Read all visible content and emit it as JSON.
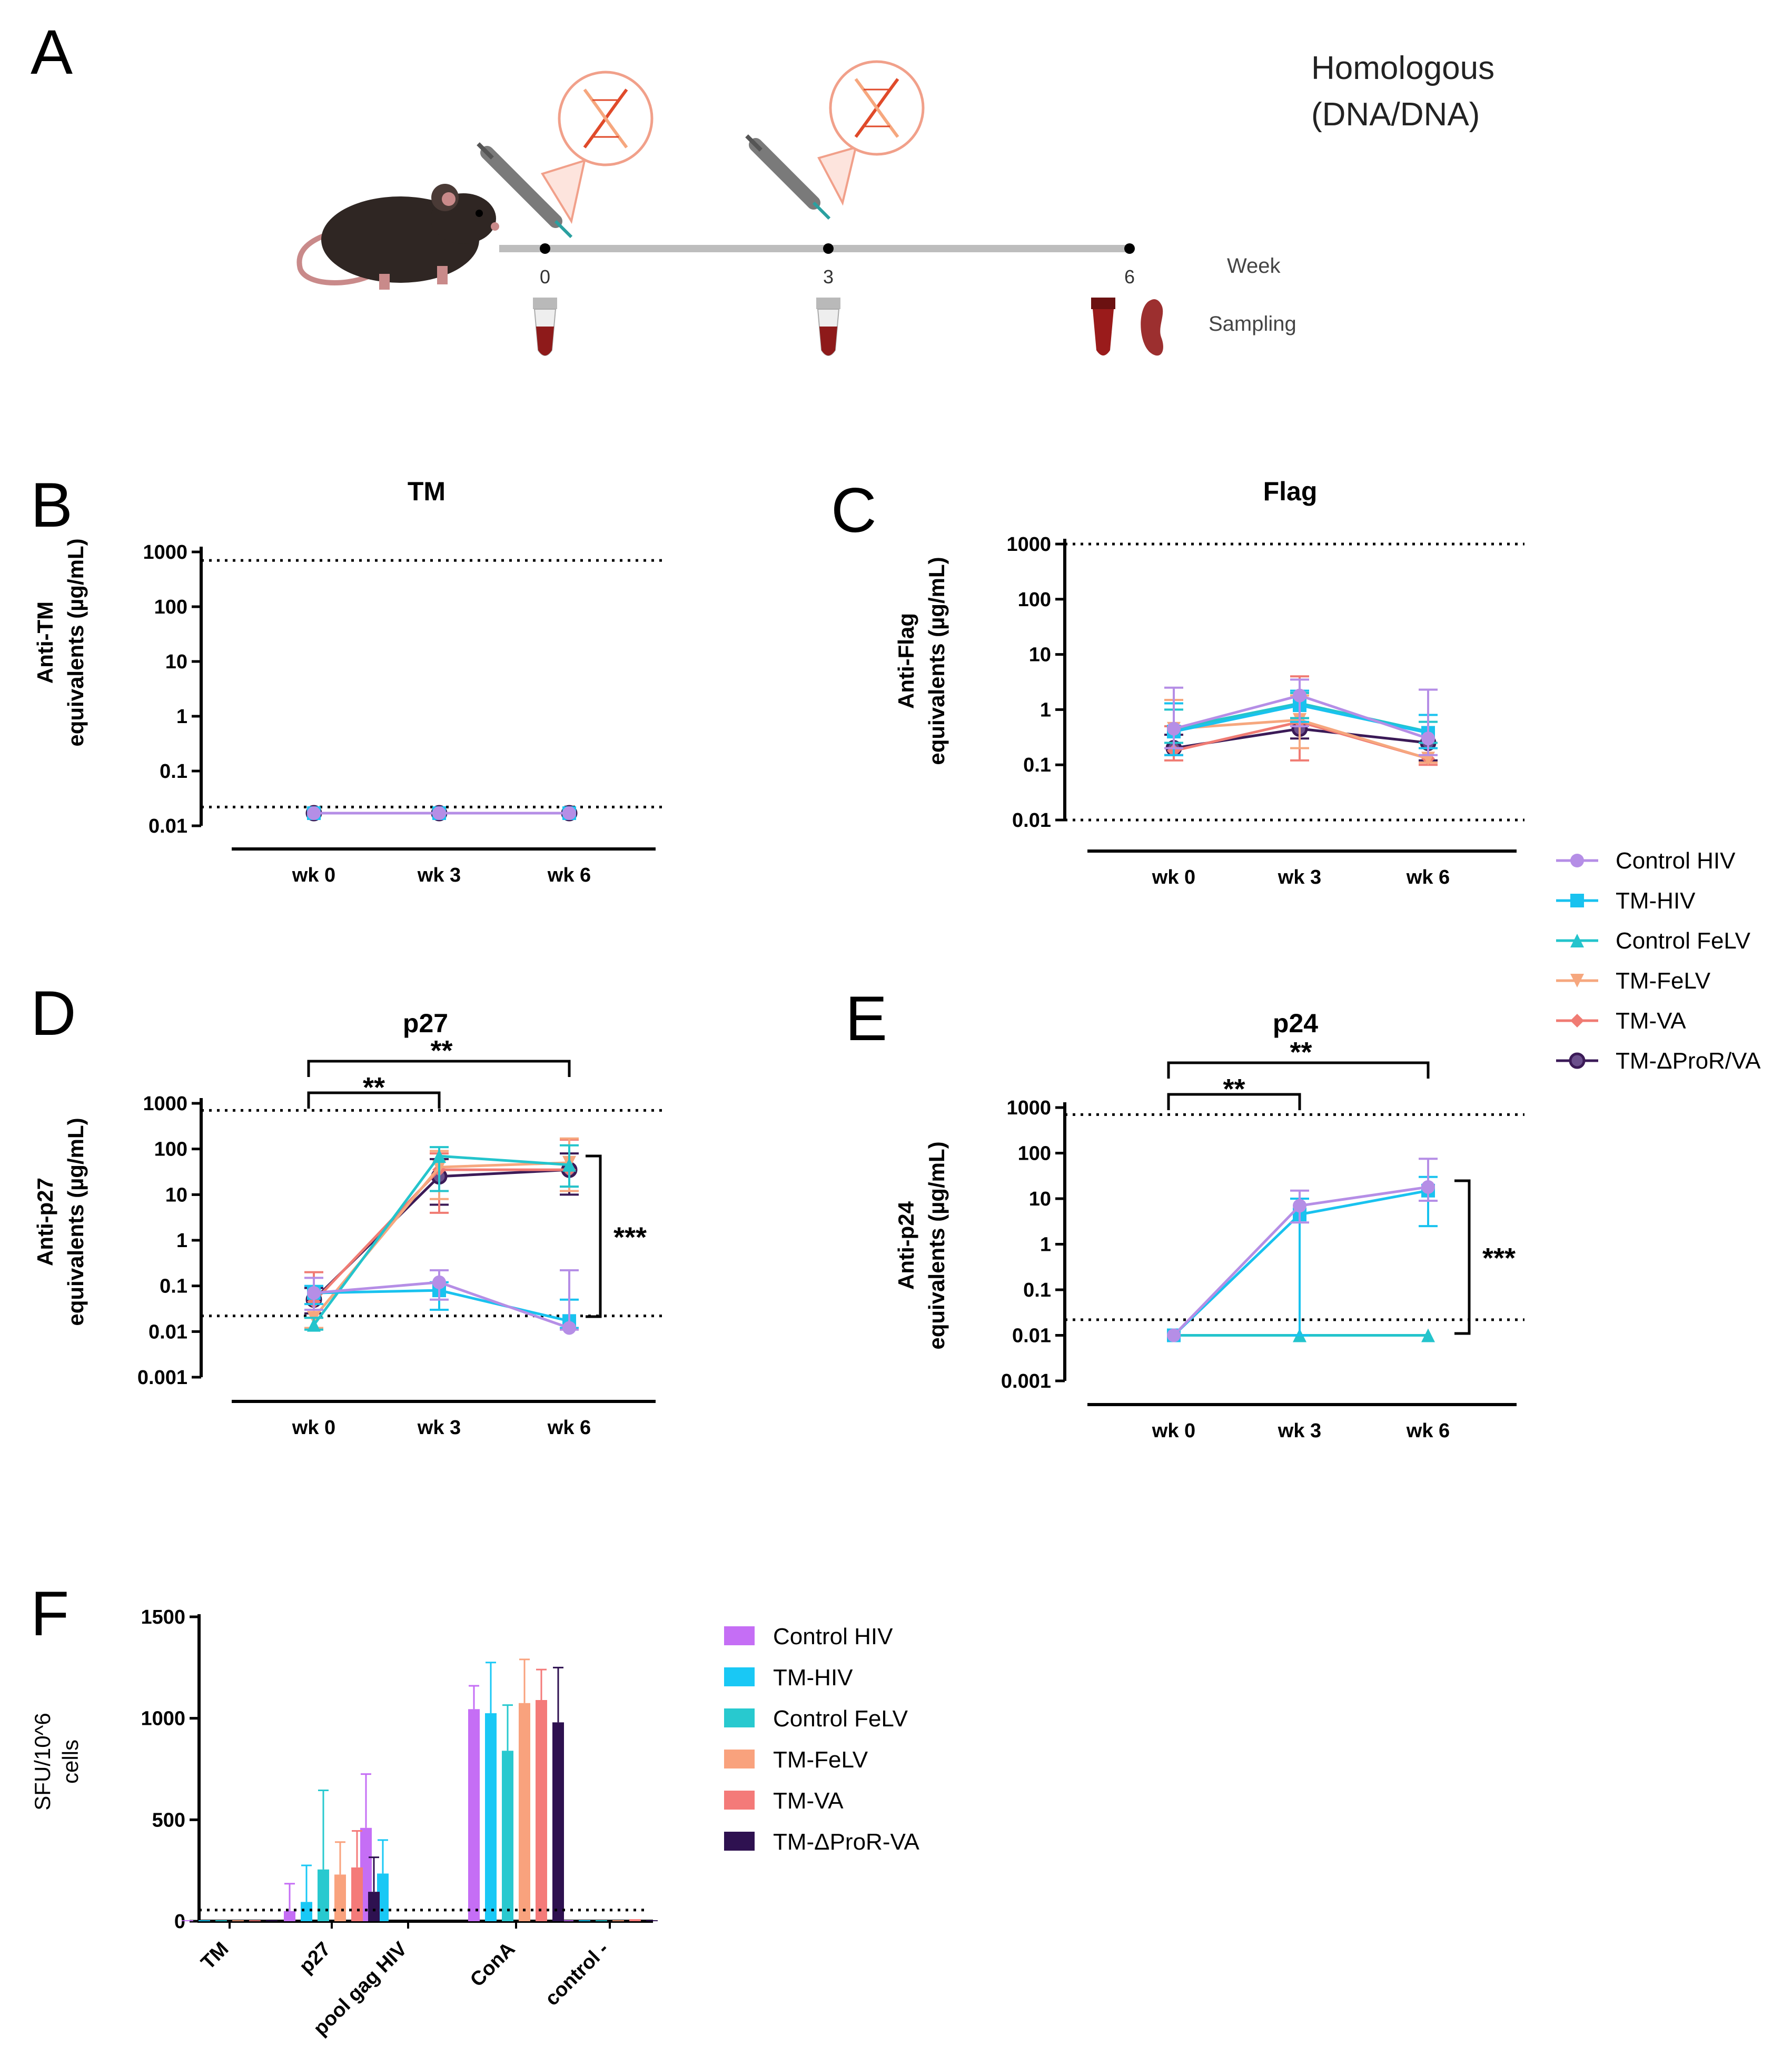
{
  "colors": {
    "control_hiv": "#b58ee6",
    "tm_hiv": "#19c2ef",
    "control_felv": "#24c4cc",
    "tm_felv": "#f6a77e",
    "tm_va": "#f07b73",
    "tm_dpror_va": "#3b1a57",
    "bar_control_hiv": "#c56ef5",
    "bar_tm_hiv": "#19c8f5",
    "bar_control_felv": "#28c9cf",
    "bar_tm_felv": "#f9a27d",
    "bar_tm_va": "#f47a79",
    "bar_tm_dpror_va": "#2e1150"
  },
  "panel_labels": {
    "a": "A",
    "b": "B",
    "c": "C",
    "d": "D",
    "e": "E",
    "f": "F"
  },
  "schematic": {
    "title_line1": "Homologous",
    "title_line2": "(DNA/DNA)",
    "weeks": [
      "0",
      "3",
      "6"
    ],
    "week_label": "Week",
    "sampling_label": "Sampling",
    "icons": [
      "mouse-icon",
      "syringe-icon",
      "dna-icon",
      "blood-tube-icon",
      "spleen-icon"
    ]
  },
  "line_legend": [
    "Control HIV",
    "TM-HIV",
    "Control FeLV",
    "TM-FeLV",
    "TM-VA",
    "TM-ΔProR/VA"
  ],
  "bar_legend": [
    "Control HIV",
    "TM-HIV",
    "Control FeLV",
    "TM-FeLV",
    "TM-VA",
    "TM-ΔProR-VA"
  ],
  "chart_data": [
    {
      "panel": "B",
      "type": "line",
      "title": "TM",
      "ylabel_line1": "Anti-TM",
      "ylabel_line2": "equivalents (µg/mL)",
      "yscale": "log",
      "ylim": [
        0.01,
        1000
      ],
      "ytick_labels": [
        "1000",
        "100",
        "10",
        "1",
        "0.1",
        "0.01"
      ],
      "categories": [
        "wk 0",
        "wk 3",
        "wk 6"
      ],
      "upper_dotted": 700,
      "lower_dotted": 0.022,
      "series": [
        {
          "name": "Control HIV",
          "values": [
            0.017,
            0.017,
            0.017
          ]
        },
        {
          "name": "TM-HIV",
          "values": [
            0.017,
            0.017,
            0.017
          ]
        },
        {
          "name": "Control FeLV",
          "values": [
            0.017,
            0.017,
            0.017
          ]
        },
        {
          "name": "TM-FeLV",
          "values": [
            0.017,
            0.017,
            0.017
          ]
        },
        {
          "name": "TM-VA",
          "values": [
            0.017,
            0.017,
            0.017
          ]
        },
        {
          "name": "TM-ΔProR/VA",
          "values": [
            0.017,
            0.017,
            0.017
          ]
        }
      ]
    },
    {
      "panel": "C",
      "type": "line",
      "title": "Flag",
      "ylabel_line1": "Anti-Flag",
      "ylabel_line2": "equivalents (µg/mL)",
      "yscale": "log",
      "ylim": [
        0.01,
        1000
      ],
      "ytick_labels": [
        "1000",
        "100",
        "10",
        "1",
        "0.1",
        "0.01"
      ],
      "categories": [
        "wk 0",
        "wk 3",
        "wk 6"
      ],
      "upper_dotted": 1000,
      "lower_dotted": 0.01,
      "series": [
        {
          "name": "Control HIV",
          "values": [
            0.45,
            1.8,
            0.3
          ],
          "err_hi": [
            2.5,
            3.5,
            2.3
          ],
          "err_lo": [
            0.2,
            0.5,
            0.15
          ]
        },
        {
          "name": "TM-HIV",
          "values": [
            0.4,
            1.2,
            0.38
          ],
          "err_hi": [
            1.3,
            2.2,
            0.8
          ],
          "err_lo": [
            0.15,
            0.6,
            0.2
          ]
        },
        {
          "name": "Control FeLV",
          "values": [
            0.45,
            1.3,
            0.4
          ],
          "err_hi": [
            1.0,
            2.0,
            0.6
          ],
          "err_lo": [
            0.25,
            0.7,
            0.25
          ]
        },
        {
          "name": "TM-FeLV",
          "values": [
            0.45,
            0.65,
            0.13
          ],
          "err_hi": [
            1.5,
            1.8,
            0.2
          ],
          "err_lo": [
            0.2,
            0.2,
            0.11
          ]
        },
        {
          "name": "TM-VA",
          "values": [
            0.18,
            0.6,
            0.13
          ],
          "err_hi": [
            0.5,
            4.0,
            0.2
          ],
          "err_lo": [
            0.12,
            0.12,
            0.1
          ]
        },
        {
          "name": "TM-ΔProR/VA",
          "values": [
            0.2,
            0.45,
            0.25
          ],
          "err_hi": [
            0.35,
            0.7,
            2.3
          ],
          "err_lo": [
            0.15,
            0.3,
            0.12
          ]
        }
      ]
    },
    {
      "panel": "D",
      "type": "line",
      "title": "p27",
      "ylabel_line1": "Anti-p27",
      "ylabel_line2": "equivalents (µg/mL)",
      "yscale": "log",
      "ylim": [
        0.001,
        1000
      ],
      "ytick_labels": [
        "1000",
        "100",
        "10",
        "1",
        "0.1",
        "0.01",
        "0.001"
      ],
      "categories": [
        "wk 0",
        "wk 3",
        "wk 6"
      ],
      "upper_dotted": 700,
      "lower_dotted": 0.022,
      "significance": [
        "**",
        "**",
        "***"
      ],
      "series": [
        {
          "name": "Control HIV",
          "values": [
            0.07,
            0.12,
            0.012
          ],
          "err_hi": [
            0.15,
            0.22,
            0.22
          ],
          "err_lo": [
            0.03,
            0.05,
            0.011
          ]
        },
        {
          "name": "TM-HIV",
          "values": [
            0.07,
            0.08,
            0.017
          ],
          "err_hi": [
            0.1,
            0.12,
            0.05
          ],
          "err_lo": [
            0.04,
            0.03,
            0.012
          ]
        },
        {
          "name": "Control FeLV",
          "values": [
            0.014,
            70,
            45
          ],
          "err_hi": [
            0.02,
            110,
            120
          ],
          "err_lo": [
            0.011,
            12,
            15
          ]
        },
        {
          "name": "TM-FeLV",
          "values": [
            0.02,
            40,
            50
          ],
          "err_hi": [
            0.03,
            90,
            170
          ],
          "err_lo": [
            0.012,
            8,
            12
          ]
        },
        {
          "name": "TM-VA",
          "values": [
            0.045,
            35,
            35
          ],
          "err_hi": [
            0.2,
            80,
            160
          ],
          "err_lo": [
            0.02,
            4,
            15
          ]
        },
        {
          "name": "TM-ΔProR/VA",
          "values": [
            0.05,
            25,
            35
          ],
          "err_hi": [
            0.09,
            60,
            80
          ],
          "err_lo": [
            0.025,
            6,
            10
          ]
        }
      ]
    },
    {
      "panel": "E",
      "type": "line",
      "title": "p24",
      "ylabel_line1": "Anti-p24",
      "ylabel_line2": "equivalents (µg/mL)",
      "yscale": "log",
      "ylim": [
        0.001,
        1000
      ],
      "ytick_labels": [
        "1000",
        "100",
        "10",
        "1",
        "0.1",
        "0.01",
        "0.001"
      ],
      "categories": [
        "wk 0",
        "wk 3",
        "wk 6"
      ],
      "upper_dotted": 700,
      "lower_dotted": 0.022,
      "significance": [
        "**",
        "**",
        "***"
      ],
      "series": [
        {
          "name": "Control HIV",
          "values": [
            0.01,
            7,
            18
          ],
          "err_hi": [
            0.01,
            15,
            75
          ],
          "err_lo": [
            0.01,
            3,
            9
          ]
        },
        {
          "name": "TM-HIV",
          "values": [
            0.01,
            4.5,
            15
          ],
          "err_hi": [
            0.01,
            10,
            30
          ],
          "err_lo": [
            0.01,
            0.01,
            2.5
          ]
        },
        {
          "name": "Control FeLV",
          "values": [
            0.01,
            0.01,
            0.01
          ]
        }
      ]
    },
    {
      "panel": "F",
      "type": "bar",
      "ylabel_line1": "SFU/10^6",
      "ylabel_line2": "cells",
      "ylim": [
        0,
        1500
      ],
      "yticks": [
        0,
        500,
        1000,
        1500
      ],
      "ytick_labels": [
        "0",
        "500",
        "1000",
        "1500"
      ],
      "dotted": 55,
      "categories": [
        "TM",
        "p27",
        "pool gag HIV",
        "ConA",
        "control -"
      ],
      "series": [
        {
          "name": "Control HIV",
          "values": [
            5,
            50,
            460,
            1045,
            5
          ],
          "err": [
            0,
            135,
            265,
            115,
            0
          ]
        },
        {
          "name": "TM-HIV",
          "values": [
            5,
            95,
            235,
            1025,
            5
          ],
          "err": [
            0,
            180,
            165,
            250,
            0
          ]
        },
        {
          "name": "Control FeLV",
          "values": [
            5,
            255,
            0,
            840,
            5
          ],
          "err": [
            0,
            390,
            0,
            225,
            0
          ]
        },
        {
          "name": "TM-FeLV",
          "values": [
            5,
            230,
            0,
            1075,
            5
          ],
          "err": [
            0,
            160,
            0,
            215,
            0
          ]
        },
        {
          "name": "TM-VA",
          "values": [
            5,
            265,
            0,
            1090,
            10
          ],
          "err": [
            0,
            180,
            0,
            150,
            0
          ]
        },
        {
          "name": "TM-ΔProR-VA",
          "values": [
            5,
            145,
            0,
            980,
            5
          ],
          "err": [
            0,
            170,
            0,
            270,
            0
          ]
        }
      ]
    }
  ]
}
